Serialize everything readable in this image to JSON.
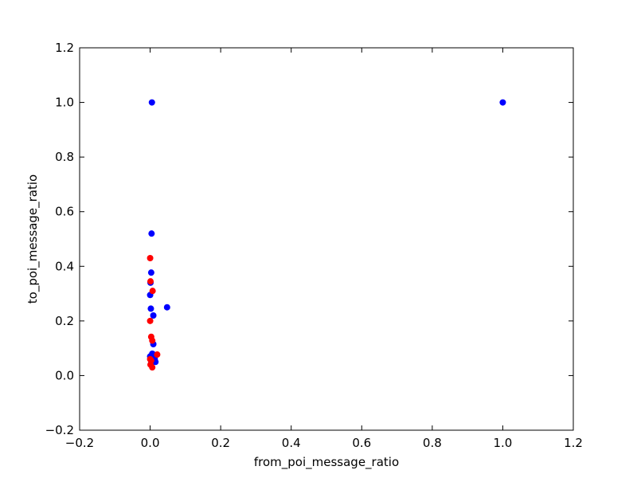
{
  "chart_data": {
    "type": "scatter",
    "title": "",
    "xlabel": "from_poi_message_ratio",
    "ylabel": "to_poi_message_ratio",
    "xlim": [
      -0.2,
      1.2
    ],
    "ylim": [
      -0.2,
      1.2
    ],
    "xticks": [
      -0.2,
      0.0,
      0.2,
      0.4,
      0.6,
      0.8,
      1.0,
      1.2
    ],
    "yticks": [
      -0.2,
      0.0,
      0.2,
      0.4,
      0.6,
      0.8,
      1.0,
      1.2
    ],
    "xtick_labels": [
      "−0.2",
      "0.0",
      "0.2",
      "0.4",
      "0.6",
      "0.8",
      "1.0",
      "1.2"
    ],
    "ytick_labels": [
      "−0.2",
      "0.0",
      "0.2",
      "0.4",
      "0.6",
      "0.8",
      "1.0",
      "1.2"
    ],
    "grid": false,
    "series": [
      {
        "color": "#0000ff",
        "points": [
          {
            "x": 0.005,
            "y": 1.0
          },
          {
            "x": 1.0,
            "y": 1.0
          },
          {
            "x": 0.004,
            "y": 0.52
          },
          {
            "x": 0.003,
            "y": 0.377
          },
          {
            "x": 0.001,
            "y": 0.34
          },
          {
            "x": 0.0,
            "y": 0.295
          },
          {
            "x": 0.002,
            "y": 0.245
          },
          {
            "x": 0.048,
            "y": 0.25
          },
          {
            "x": 0.009,
            "y": 0.22
          },
          {
            "x": 0.009,
            "y": 0.115
          },
          {
            "x": 0.006,
            "y": 0.08
          },
          {
            "x": 0.008,
            "y": 0.078
          },
          {
            "x": 0.0,
            "y": 0.07
          },
          {
            "x": 0.013,
            "y": 0.06
          },
          {
            "x": 0.015,
            "y": 0.05
          },
          {
            "x": 0.003,
            "y": 0.045
          }
        ]
      },
      {
        "color": "#ff0000",
        "points": [
          {
            "x": 0.0,
            "y": 0.43
          },
          {
            "x": 0.001,
            "y": 0.345
          },
          {
            "x": 0.007,
            "y": 0.31
          },
          {
            "x": 0.0,
            "y": 0.2
          },
          {
            "x": 0.003,
            "y": 0.142
          },
          {
            "x": 0.006,
            "y": 0.128
          },
          {
            "x": 0.02,
            "y": 0.077
          },
          {
            "x": 0.0,
            "y": 0.06
          },
          {
            "x": 0.003,
            "y": 0.055
          },
          {
            "x": 0.001,
            "y": 0.04
          },
          {
            "x": 0.006,
            "y": 0.03
          }
        ]
      }
    ]
  }
}
